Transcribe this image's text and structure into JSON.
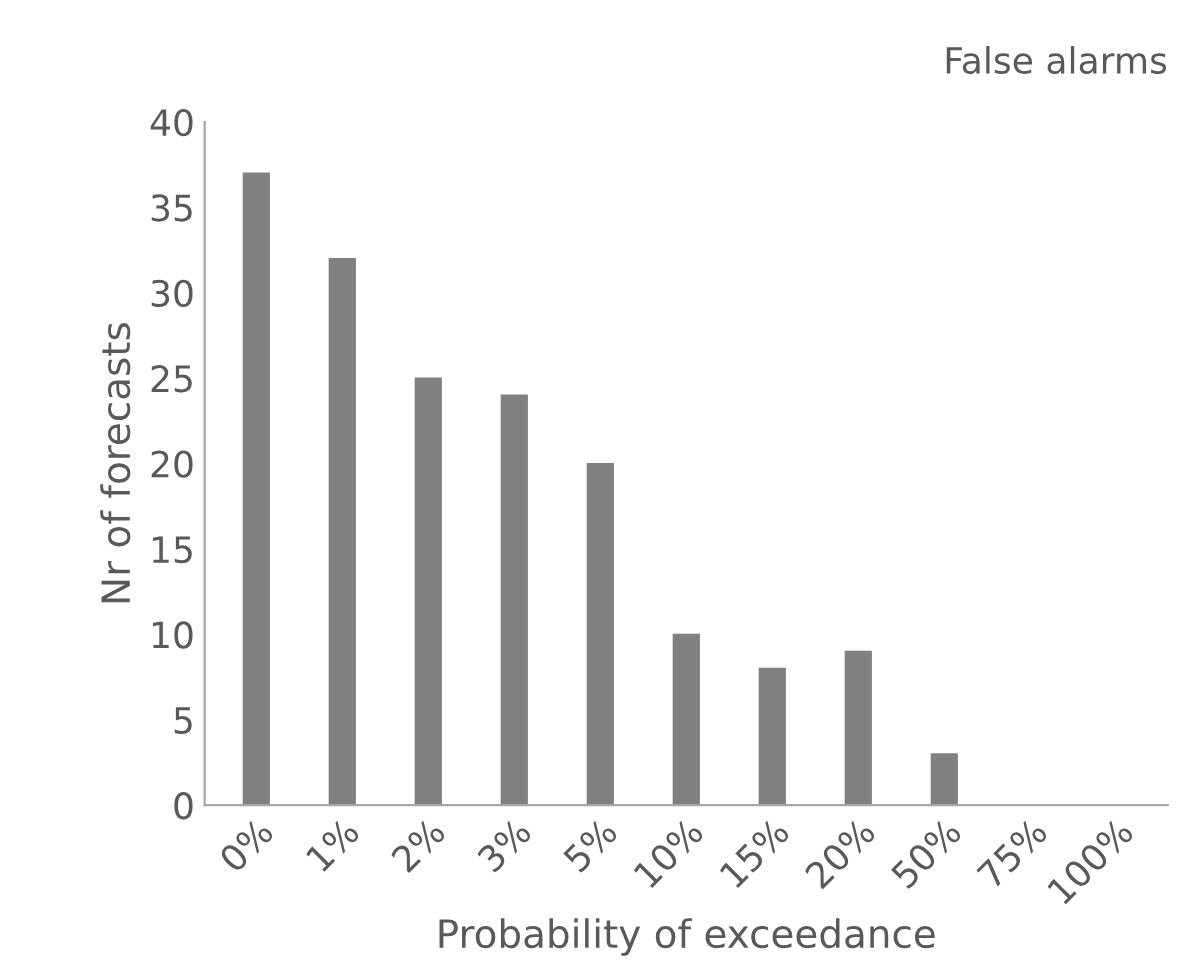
{
  "chart_data": {
    "type": "bar",
    "title": "False alarms",
    "xlabel": "Probability of exceedance",
    "ylabel": "Nr of forecasts",
    "categories": [
      "0%",
      "1%",
      "2%",
      "3%",
      "5%",
      "10%",
      "15%",
      "20%",
      "50%",
      "75%",
      "100%"
    ],
    "values": [
      37,
      32,
      25,
      24,
      20,
      10,
      8,
      9,
      3,
      0,
      0
    ],
    "color": "#808080",
    "ylim": [
      0,
      40
    ],
    "yticks": [
      0,
      5,
      10,
      15,
      20,
      25,
      30,
      35,
      40
    ],
    "grid": false,
    "legend": false
  }
}
